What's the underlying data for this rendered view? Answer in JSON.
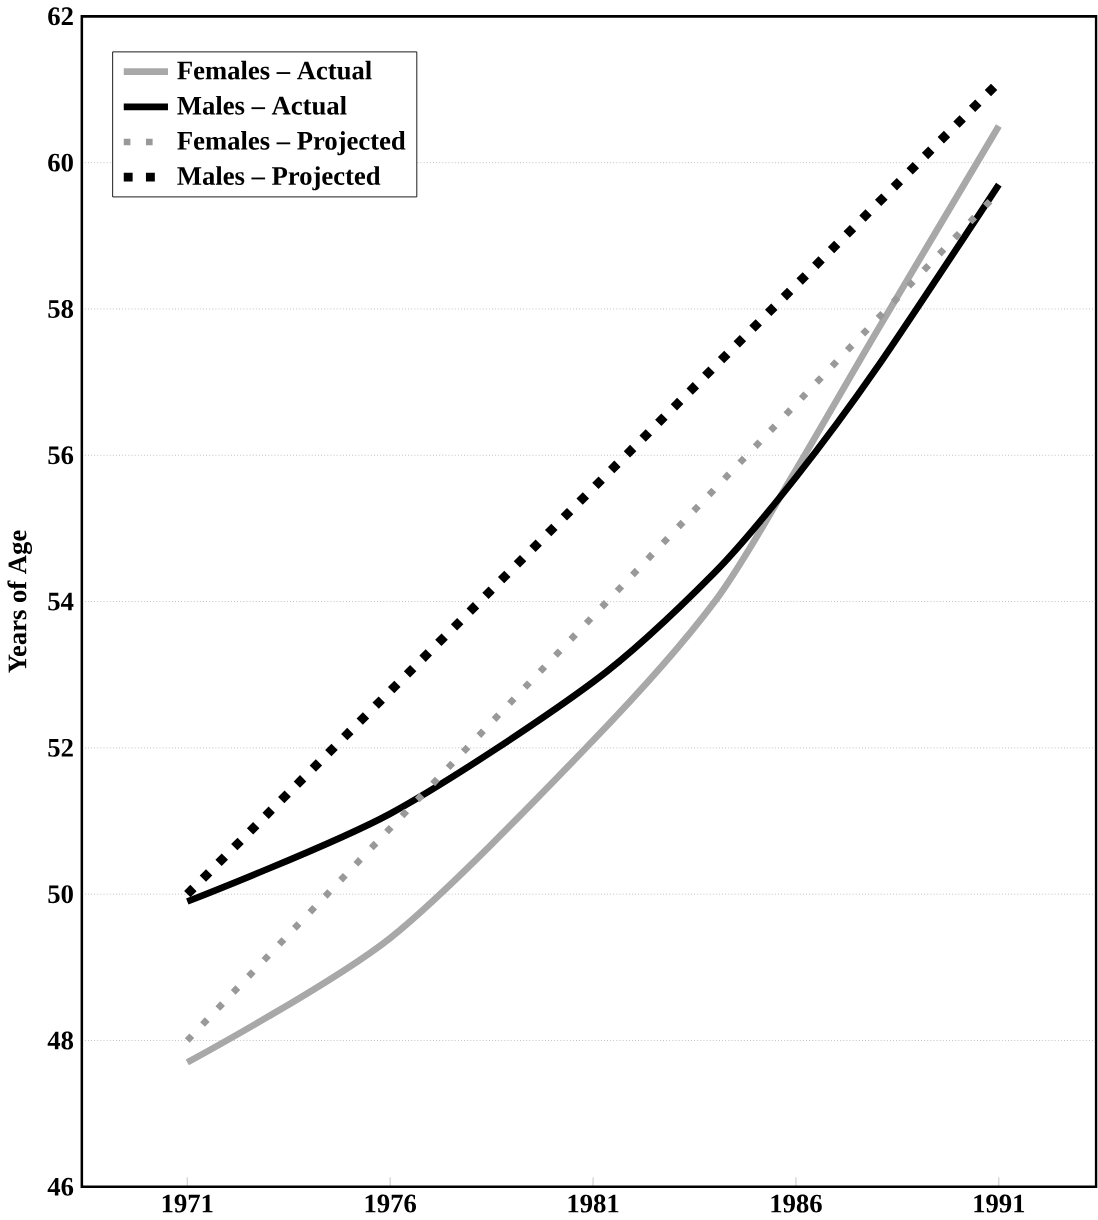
{
  "chart_data": {
    "type": "line",
    "ylabel": "Years of Age",
    "xlim": [
      1968.4,
      1993.4
    ],
    "ylim": [
      46,
      62
    ],
    "xticks": [
      1971,
      1976,
      1981,
      1986,
      1991
    ],
    "yticks": [
      46,
      48,
      50,
      52,
      54,
      56,
      58,
      60,
      62
    ],
    "grid": "y",
    "legend": "top left",
    "series": [
      {
        "name": "Females – Actual",
        "color": "#a8a8a8",
        "line_style": "solid",
        "x": [
          1971,
          1976,
          1981,
          1984,
          1986,
          1988,
          1991
        ],
        "values": [
          47.7,
          49.4,
          52.1,
          54.0,
          55.8,
          57.7,
          60.5
        ]
      },
      {
        "name": "Males – Actual",
        "color": "#000000",
        "line_style": "solid",
        "x": [
          1971,
          1976,
          1981,
          1984,
          1986,
          1988,
          1991
        ],
        "values": [
          49.9,
          51.1,
          52.9,
          54.4,
          55.7,
          57.2,
          59.7
        ]
      },
      {
        "name": "Females – Projected",
        "color": "#999999",
        "line_style": "dotted",
        "x": [
          1971,
          1991
        ],
        "values": [
          48.0,
          59.6
        ]
      },
      {
        "name": "Males – Projected",
        "color": "#000000",
        "line_style": "dotted",
        "x": [
          1971,
          1991
        ],
        "values": [
          50.0,
          61.1
        ]
      }
    ]
  }
}
